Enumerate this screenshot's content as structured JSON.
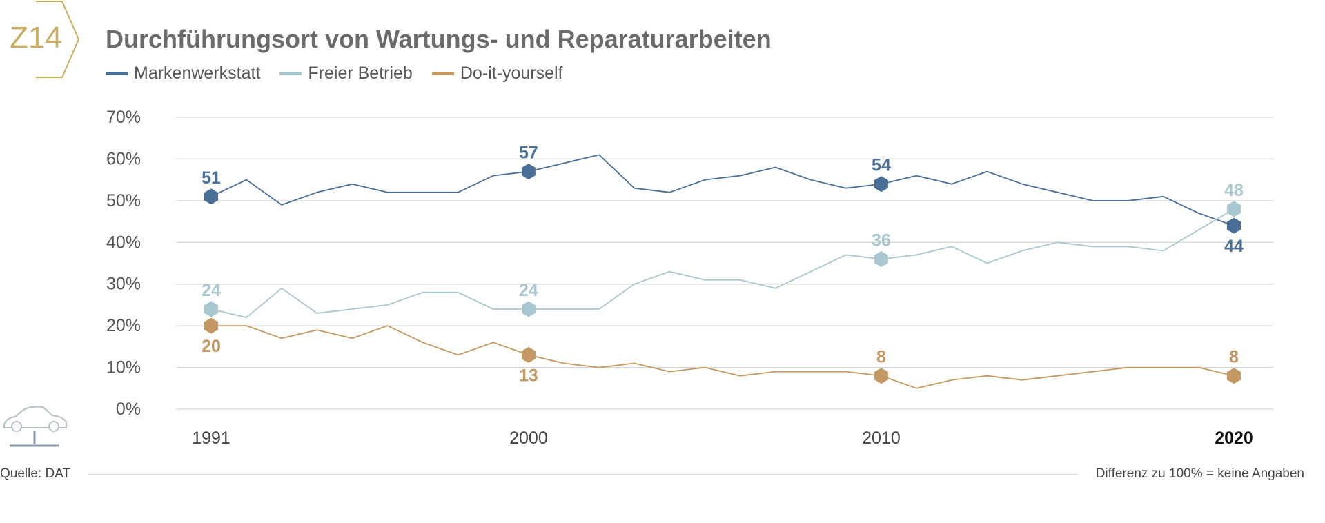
{
  "badge": {
    "label": "Z14"
  },
  "title": "Durchführungsort von Wartungs- und Reparaturarbeiten",
  "source": "Quelle: DAT",
  "note": "Differenz zu 100% = keine Angaben",
  "colors": {
    "accent": "#c9ad5e",
    "title": "#6b6b6b",
    "icon": "#b8bec6"
  },
  "icons": [
    "badge-chevron-icon",
    "car-lift-icon"
  ],
  "chart_data": {
    "type": "line",
    "title": "Durchführungsort von Wartungs- und Reparaturarbeiten",
    "xlabel": "",
    "ylabel": "",
    "x": [
      1991,
      1992,
      1993,
      1994,
      1995,
      1996,
      1997,
      1998,
      1999,
      2000,
      2001,
      2002,
      2003,
      2004,
      2005,
      2006,
      2007,
      2008,
      2009,
      2010,
      2011,
      2012,
      2013,
      2014,
      2015,
      2016,
      2017,
      2018,
      2019,
      2020
    ],
    "xlim": [
      1991,
      2020
    ],
    "ylim": [
      0,
      70
    ],
    "yticks": [
      0,
      10,
      20,
      30,
      40,
      50,
      60,
      70
    ],
    "ytick_labels": [
      "0%",
      "10%",
      "20%",
      "30%",
      "40%",
      "50%",
      "60%",
      "70%"
    ],
    "xticks": [
      {
        "x": 1991,
        "label": "1991",
        "bold": false
      },
      {
        "x": 2000,
        "label": "2000",
        "bold": false
      },
      {
        "x": 2010,
        "label": "2010",
        "bold": false
      },
      {
        "x": 2020,
        "label": "2020",
        "bold": true
      }
    ],
    "grid": true,
    "legend_position": "top-left",
    "series": [
      {
        "name": "Markenwerkstatt",
        "color": "#4a6f96",
        "values": [
          51,
          55,
          49,
          52,
          54,
          52,
          52,
          52,
          56,
          57,
          59,
          61,
          53,
          52,
          55,
          56,
          58,
          55,
          53,
          54,
          56,
          54,
          57,
          54,
          52,
          50,
          50,
          51,
          47,
          44
        ],
        "markers": [
          {
            "x": 1991,
            "y": 51,
            "label": "51",
            "pos": "above"
          },
          {
            "x": 2000,
            "y": 57,
            "label": "57",
            "pos": "above"
          },
          {
            "x": 2010,
            "y": 54,
            "label": "54",
            "pos": "above"
          },
          {
            "x": 2020,
            "y": 44,
            "label": "44",
            "pos": "below"
          }
        ]
      },
      {
        "name": "Freier Betrieb",
        "color": "#a9c7d0",
        "values": [
          24,
          22,
          29,
          23,
          24,
          25,
          28,
          28,
          24,
          24,
          24,
          24,
          30,
          33,
          31,
          31,
          29,
          33,
          37,
          36,
          37,
          39,
          35,
          38,
          40,
          39,
          39,
          38,
          43,
          48
        ],
        "markers": [
          {
            "x": 1991,
            "y": 24,
            "label": "24",
            "pos": "above"
          },
          {
            "x": 2000,
            "y": 24,
            "label": "24",
            "pos": "above"
          },
          {
            "x": 2010,
            "y": 36,
            "label": "36",
            "pos": "above"
          },
          {
            "x": 2020,
            "y": 48,
            "label": "48",
            "pos": "above"
          }
        ]
      },
      {
        "name": "Do-it-yourself",
        "color": "#c49862",
        "values": [
          20,
          20,
          17,
          19,
          17,
          20,
          16,
          13,
          16,
          13,
          11,
          10,
          11,
          9,
          10,
          8,
          9,
          9,
          9,
          8,
          5,
          7,
          8,
          7,
          8,
          9,
          10,
          10,
          10,
          8
        ],
        "markers": [
          {
            "x": 1991,
            "y": 20,
            "label": "20",
            "pos": "below"
          },
          {
            "x": 2000,
            "y": 13,
            "label": "13",
            "pos": "below"
          },
          {
            "x": 2010,
            "y": 8,
            "label": "8",
            "pos": "above"
          },
          {
            "x": 2020,
            "y": 8,
            "label": "8",
            "pos": "above"
          }
        ]
      }
    ]
  }
}
